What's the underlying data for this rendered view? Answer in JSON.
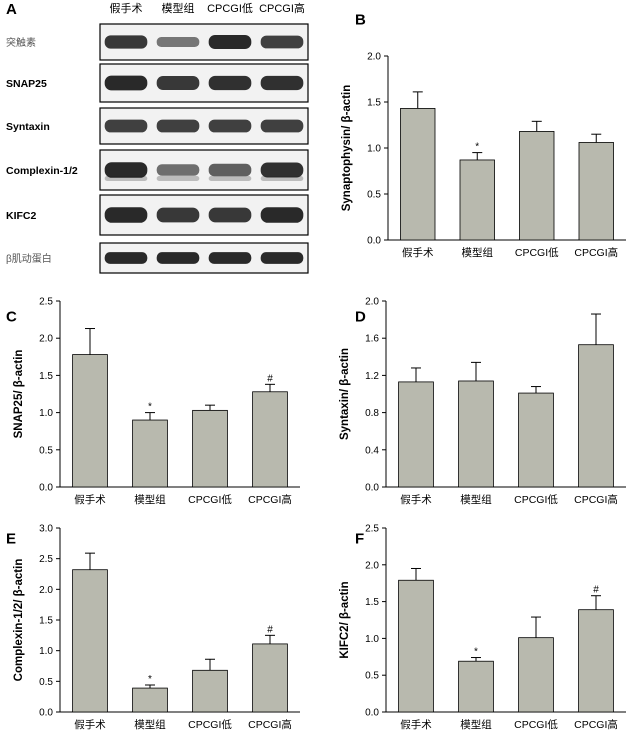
{
  "blot_panel": {
    "letter": "A",
    "columns": [
      "假手术",
      "模型组",
      "CPCGI低",
      "CPCGI高"
    ],
    "rows": [
      {
        "label": "突触素",
        "bands": [
          0.85,
          0.45,
          0.95,
          0.8
        ]
      },
      {
        "label": "SNAP25",
        "bands": [
          0.95,
          0.85,
          0.9,
          0.9
        ]
      },
      {
        "label": "Syntaxin",
        "bands": [
          0.8,
          0.8,
          0.8,
          0.8
        ]
      },
      {
        "label": "Complexin-1/2",
        "bands": [
          0.95,
          0.5,
          0.6,
          0.9
        ]
      },
      {
        "label": "KIFC2",
        "bands": [
          0.95,
          0.85,
          0.85,
          0.95
        ]
      },
      {
        "label": "β肌动蛋白",
        "bands": [
          0.95,
          0.95,
          0.95,
          0.95
        ]
      }
    ]
  },
  "colors": {
    "bar": "#b8b9ae",
    "axis": "#000000",
    "band": "#1a1a1a"
  },
  "chart_data": [
    {
      "letter": "B",
      "type": "bar",
      "categories": [
        "假手术",
        "模型组",
        "CPCGI低",
        "CPCGI高"
      ],
      "values": [
        1.43,
        0.87,
        1.18,
        1.06
      ],
      "errors": [
        0.18,
        0.08,
        0.11,
        0.09
      ],
      "marks": [
        "",
        "*",
        "",
        ""
      ],
      "ylabel": "Synaptophysin/ β-actin",
      "ylim": [
        0,
        2.0
      ],
      "yticks": [
        "0.0",
        "0.5",
        "1.0",
        "1.5",
        "2.0"
      ]
    },
    {
      "letter": "C",
      "type": "bar",
      "categories": [
        "假手术",
        "模型组",
        "CPCGI低",
        "CPCGI高"
      ],
      "values": [
        1.78,
        0.9,
        1.03,
        1.28
      ],
      "errors": [
        0.35,
        0.1,
        0.07,
        0.1
      ],
      "marks": [
        "",
        "*",
        "",
        "#"
      ],
      "ylabel": "SNAP25/ β-actin",
      "ylim": [
        0,
        2.5
      ],
      "yticks": [
        "0.0",
        "0.5",
        "1.0",
        "1.5",
        "2.0",
        "2.5"
      ]
    },
    {
      "letter": "D",
      "type": "bar",
      "categories": [
        "假手术",
        "模型组",
        "CPCGI低",
        "CPCGI高"
      ],
      "values": [
        1.13,
        1.14,
        1.01,
        1.53
      ],
      "errors": [
        0.15,
        0.2,
        0.07,
        0.33
      ],
      "marks": [
        "",
        "",
        "",
        ""
      ],
      "ylabel": "Syntaxin/ β-actin",
      "ylim": [
        0,
        2.0
      ],
      "yticks": [
        "0.0",
        "0.4",
        "0.8",
        "1.2",
        "1.6",
        "2.0"
      ]
    },
    {
      "letter": "E",
      "type": "bar",
      "categories": [
        "假手术",
        "模型组",
        "CPCGI低",
        "CPCGI高"
      ],
      "values": [
        2.32,
        0.39,
        0.68,
        1.11
      ],
      "errors": [
        0.27,
        0.05,
        0.18,
        0.14
      ],
      "marks": [
        "",
        "*",
        "",
        "#"
      ],
      "ylabel": "Complexin-1/2/ β-actin",
      "ylim": [
        0,
        3.0
      ],
      "yticks": [
        "0.0",
        "0.5",
        "1.0",
        "1.5",
        "2.0",
        "2.5",
        "3.0"
      ]
    },
    {
      "letter": "F",
      "type": "bar",
      "categories": [
        "假手术",
        "模型组",
        "CPCGI低",
        "CPCGI高"
      ],
      "values": [
        1.79,
        0.69,
        1.01,
        1.39
      ],
      "errors": [
        0.16,
        0.05,
        0.28,
        0.19
      ],
      "marks": [
        "",
        "*",
        "",
        "#"
      ],
      "ylabel": "KIFC2/ β-actin",
      "ylim": [
        0,
        2.5
      ],
      "yticks": [
        "0.0",
        "0.5",
        "1.0",
        "1.5",
        "2.0",
        "2.5"
      ]
    }
  ]
}
